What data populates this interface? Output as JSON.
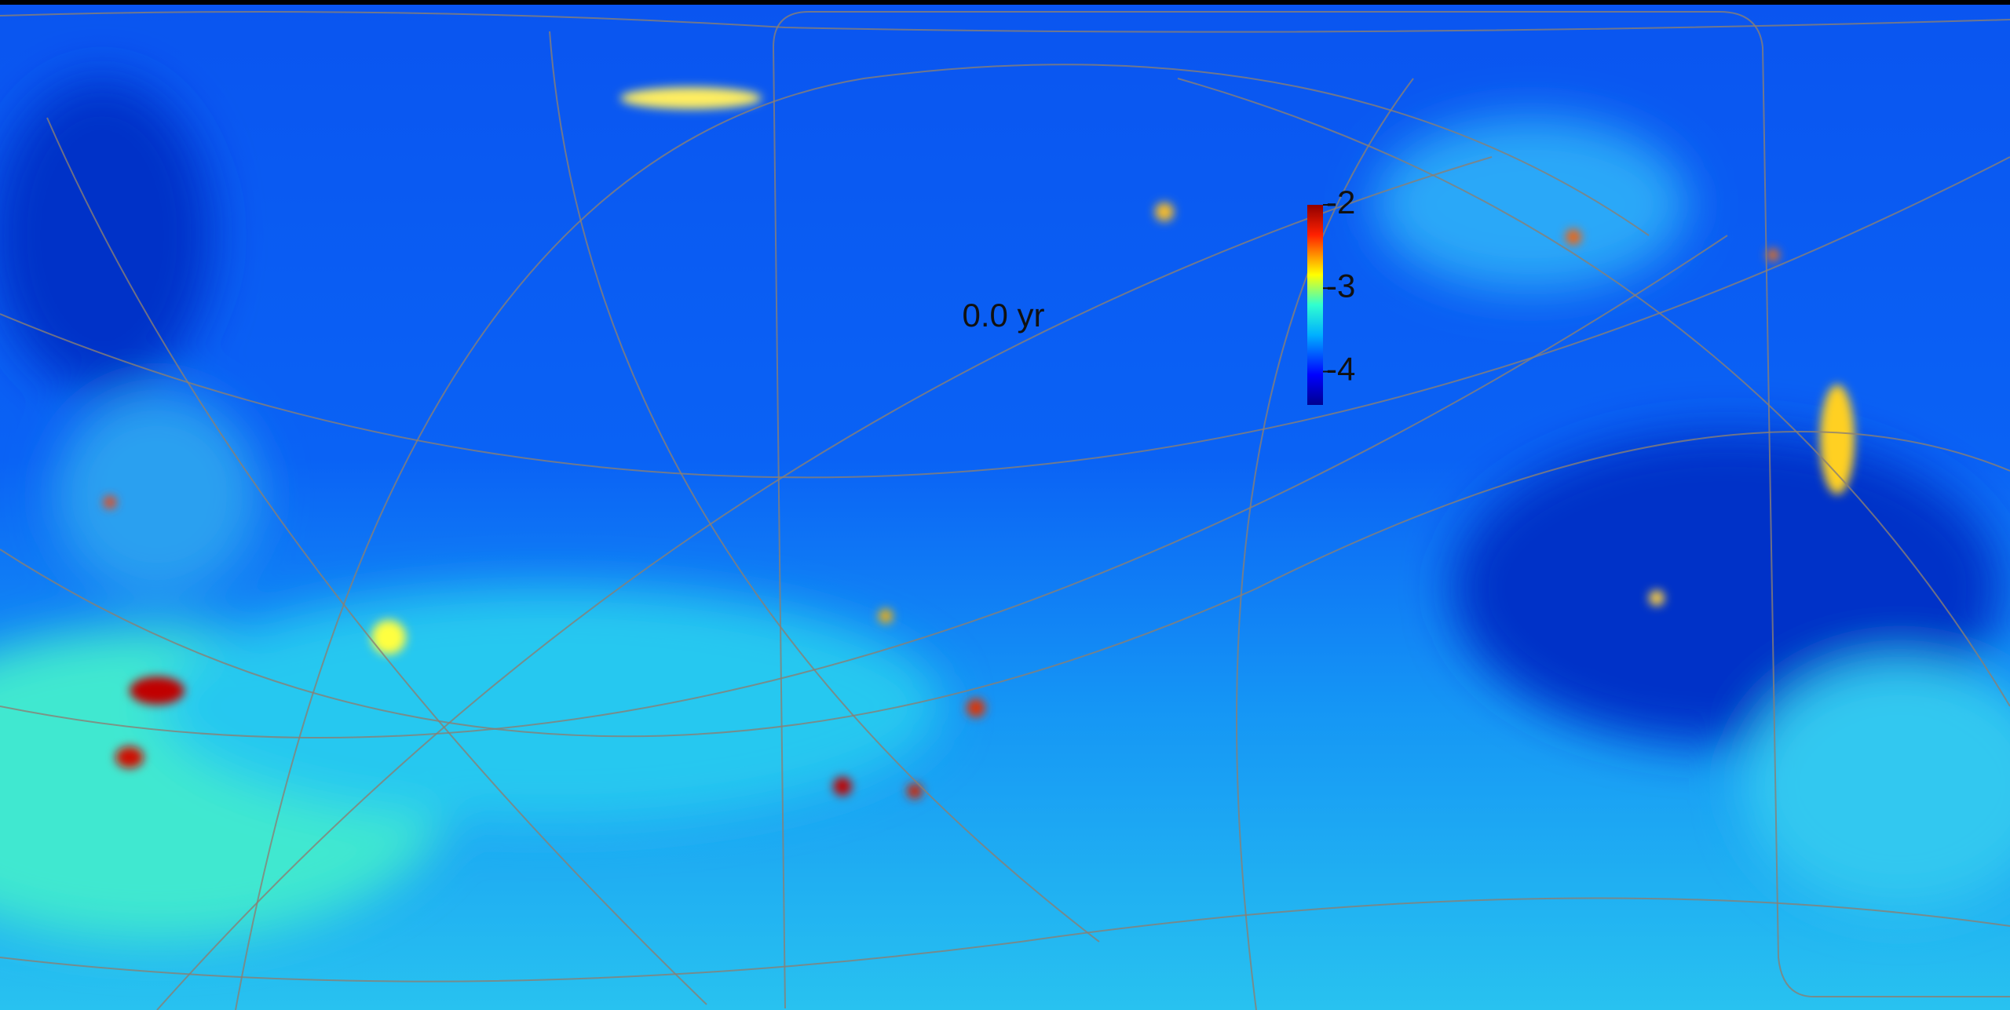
{
  "time_label": "0.0 yr",
  "colorbar": {
    "lim": [
      -4.4,
      -2
    ],
    "ticks": [
      -2,
      -3,
      -4
    ]
  }
}
